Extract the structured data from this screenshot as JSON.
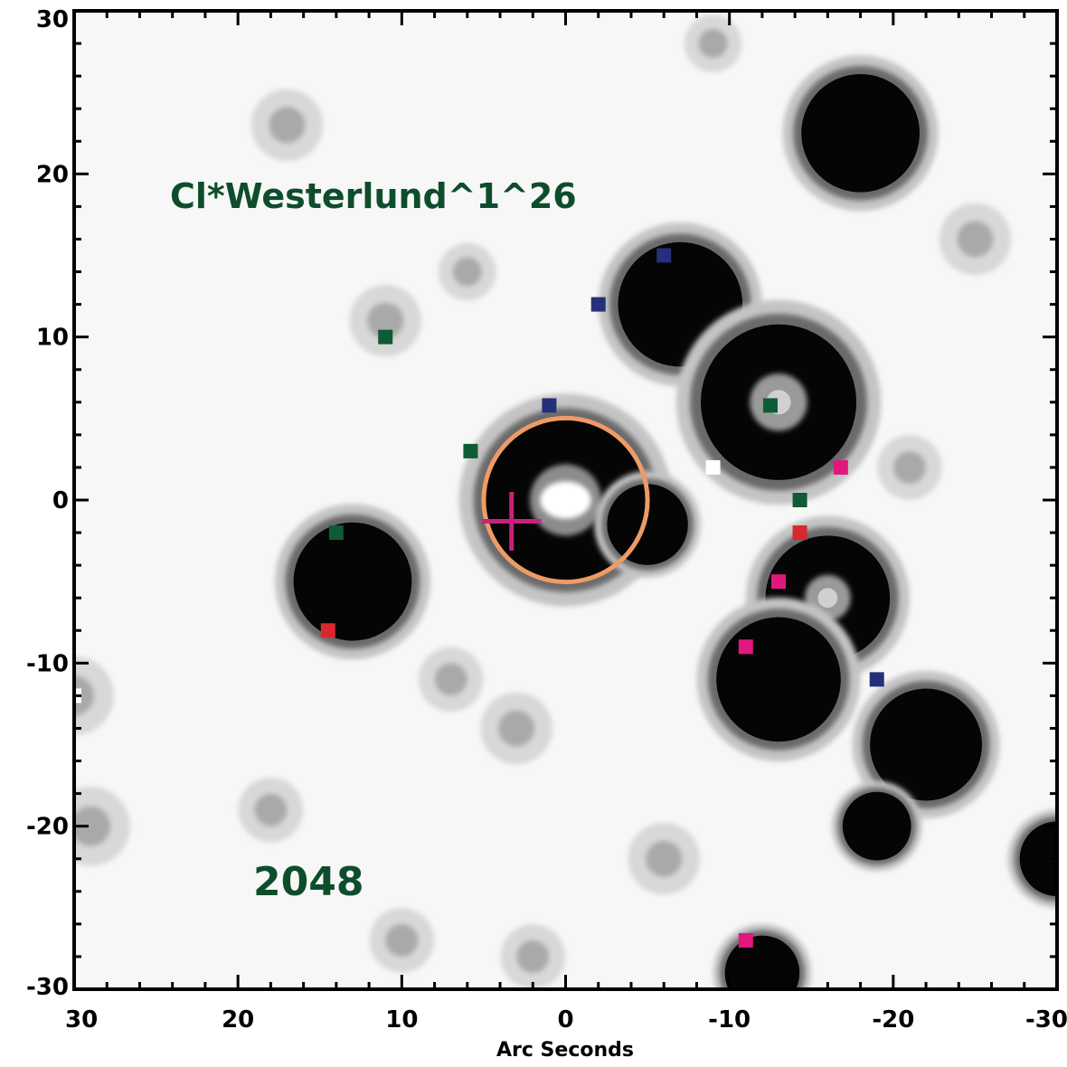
{
  "figure": {
    "object_label": "Cl*Westerlund^1^26",
    "wavelength_label": "2048",
    "xlabel": "Arc Seconds",
    "xlim": [
      30,
      -30
    ],
    "ylim": [
      -30,
      30
    ],
    "x_ticks": [
      "30",
      "20",
      "10",
      "0",
      "-10",
      "-20",
      "-30"
    ],
    "y_ticks": [
      "30",
      "20",
      "10",
      "0",
      "-10",
      "-20",
      "-30"
    ],
    "colors": {
      "label_green": "#0e4d2c",
      "circle": "#ee9b66",
      "cross": "#c8217a"
    }
  },
  "stars": [
    {
      "x": 0,
      "y": 0,
      "r": 5.2,
      "core": "bright"
    },
    {
      "x": -7,
      "y": 12,
      "r": 4.0,
      "core": "dark"
    },
    {
      "x": -13,
      "y": 6,
      "r": 5.0,
      "core": "gray"
    },
    {
      "x": 13,
      "y": -5,
      "r": 3.8,
      "core": "dark"
    },
    {
      "x": -18,
      "y": 22.5,
      "r": 3.8,
      "core": "dark"
    },
    {
      "x": -16,
      "y": -6,
      "r": 4.0,
      "core": "gray"
    },
    {
      "x": -13,
      "y": -11,
      "r": 4.0,
      "core": "dark"
    },
    {
      "x": -22,
      "y": -15,
      "r": 3.6,
      "core": "dark"
    },
    {
      "x": -5,
      "y": -1.5,
      "r": 2.6,
      "core": "dark"
    },
    {
      "x": 11,
      "y": 11,
      "r": 2.0,
      "core": "faint"
    },
    {
      "x": 17,
      "y": 23,
      "r": 2.0,
      "core": "faint"
    },
    {
      "x": -25,
      "y": 16,
      "r": 2.0,
      "core": "faint"
    },
    {
      "x": -21,
      "y": 2,
      "r": 1.8,
      "core": "faint"
    },
    {
      "x": 30,
      "y": -12,
      "r": 2.2,
      "core": "faint"
    },
    {
      "x": 29,
      "y": -20,
      "r": 2.2,
      "core": "faint"
    },
    {
      "x": -6,
      "y": -22,
      "r": 2.0,
      "core": "faint"
    },
    {
      "x": -19,
      "y": -20,
      "r": 2.2,
      "core": "dark"
    },
    {
      "x": 3,
      "y": -14,
      "r": 2.0,
      "core": "faint"
    },
    {
      "x": -30,
      "y": -22,
      "r": 2.4,
      "core": "dark"
    },
    {
      "x": -12,
      "y": -29,
      "r": 2.4,
      "core": "dark"
    },
    {
      "x": 7,
      "y": -11,
      "r": 1.8,
      "core": "faint"
    },
    {
      "x": 18,
      "y": -19,
      "r": 1.8,
      "core": "faint"
    },
    {
      "x": -9,
      "y": 28,
      "r": 1.6,
      "core": "faint"
    },
    {
      "x": 6,
      "y": 14,
      "r": 1.6,
      "core": "faint"
    },
    {
      "x": 2,
      "y": -28,
      "r": 1.8,
      "core": "faint"
    },
    {
      "x": 10,
      "y": -27,
      "r": 1.8,
      "core": "faint"
    }
  ],
  "markers": [
    {
      "x": 1,
      "y": 5.8,
      "c": "#25307a"
    },
    {
      "x": 5.8,
      "y": 3,
      "c": "#0e5c36"
    },
    {
      "x": -6,
      "y": 15,
      "c": "#25307a"
    },
    {
      "x": -2,
      "y": 12,
      "c": "#25307a"
    },
    {
      "x": -12.5,
      "y": 5.8,
      "c": "#0e5c36"
    },
    {
      "x": -16.8,
      "y": 2,
      "c": "#e0187e"
    },
    {
      "x": -14.3,
      "y": 0,
      "c": "#0e5c36"
    },
    {
      "x": -14.3,
      "y": -2,
      "c": "#d7282f"
    },
    {
      "x": -13,
      "y": -5,
      "c": "#e0187e"
    },
    {
      "x": -11,
      "y": -9,
      "c": "#e0187e"
    },
    {
      "x": -19,
      "y": -11,
      "c": "#25307a"
    },
    {
      "x": 11,
      "y": 10,
      "c": "#0e5c36"
    },
    {
      "x": 14,
      "y": -2,
      "c": "#0e5c36"
    },
    {
      "x": 14.5,
      "y": -8,
      "c": "#d7282f"
    },
    {
      "x": -11,
      "y": -27,
      "c": "#e0187e"
    },
    {
      "x": -9,
      "y": 2,
      "c": "#ffffff"
    },
    {
      "x": 30,
      "y": -12,
      "c": "#ffffff"
    }
  ],
  "aperture": {
    "x": 0,
    "y": 0,
    "r": 5
  },
  "cross": {
    "x": 3.3,
    "y": -1.3,
    "half": 1.8
  }
}
